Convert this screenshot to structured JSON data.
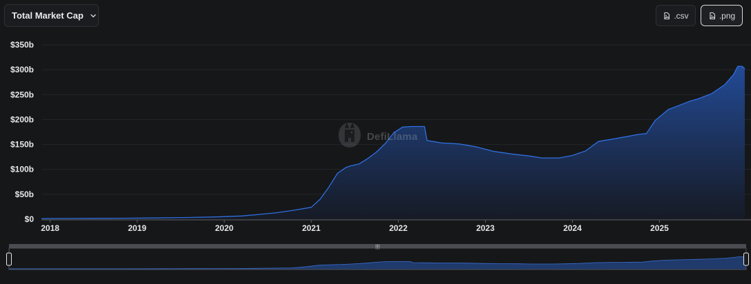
{
  "header": {
    "metric_select_label": "Total Market Cap",
    "chevron_icon": "chevron-down-icon",
    "csv_label": ".csv",
    "png_label": ".png",
    "file_icon": "file-image-icon"
  },
  "watermark": {
    "brand_text": "DefiLlama",
    "logo_icon": "llama-logo-icon"
  },
  "colors": {
    "background": "#161719",
    "line": "#2f6fe0",
    "area_top": "#234d9c",
    "area_bottom": "#161b26",
    "axis_text": "#e6e7ea",
    "grid": "#24262a",
    "slider_track": "#4a4c51",
    "slider_fill": "#1f3a6b"
  },
  "chart_data": {
    "type": "area",
    "title": "",
    "xlabel": "",
    "ylabel": "",
    "ylim": [
      0,
      350
    ],
    "x_unit": "year",
    "y_unit": "billion USD",
    "y_ticks": [
      0,
      50,
      100,
      150,
      200,
      250,
      300,
      350
    ],
    "y_tick_labels": [
      "$0",
      "$50b",
      "$100b",
      "$150b",
      "$200b",
      "$250b",
      "$300b",
      "$350b"
    ],
    "x_ticks": [
      2018,
      2019,
      2020,
      2021,
      2022,
      2023,
      2024,
      2025
    ],
    "x_tick_labels": [
      "2018",
      "2019",
      "2020",
      "2021",
      "2022",
      "2023",
      "2024",
      "2025"
    ],
    "xlim": [
      2017.9,
      2025.98
    ],
    "grid": true,
    "legend": "none",
    "series": [
      {
        "x": [
          2017.9,
          2018.3,
          2018.8,
          2019.2,
          2019.6,
          2019.9,
          2020.2,
          2020.4,
          2020.6,
          2020.8,
          2021.0,
          2021.1,
          2021.2,
          2021.3,
          2021.4,
          2021.45,
          2021.55,
          2021.65,
          2021.75,
          2021.85,
          2021.95,
          2022.05,
          2022.15,
          2022.3,
          2022.33,
          2022.5,
          2022.7,
          2022.9,
          2023.1,
          2023.3,
          2023.5,
          2023.65,
          2023.85,
          2024.0,
          2024.15,
          2024.3,
          2024.5,
          2024.6,
          2024.75,
          2024.85,
          2024.95,
          2025.1,
          2025.25,
          2025.35,
          2025.45,
          2025.6,
          2025.75,
          2025.85,
          2025.9,
          2025.95,
          2025.98
        ],
        "y": [
          1.2,
          1.5,
          1.9,
          2.5,
          3.5,
          4.5,
          6.5,
          9.5,
          13,
          18,
          24,
          40,
          64,
          92,
          104,
          107,
          111,
          122,
          135,
          152,
          174,
          185,
          186,
          186,
          158,
          153,
          151,
          145,
          136,
          131,
          127,
          123,
          123,
          128,
          137,
          156,
          162,
          165,
          170,
          172,
          198,
          220,
          230,
          237,
          242,
          252,
          270,
          290,
          307,
          307,
          302
        ]
      }
    ],
    "brush_range": [
      "2018",
      "2025"
    ]
  }
}
